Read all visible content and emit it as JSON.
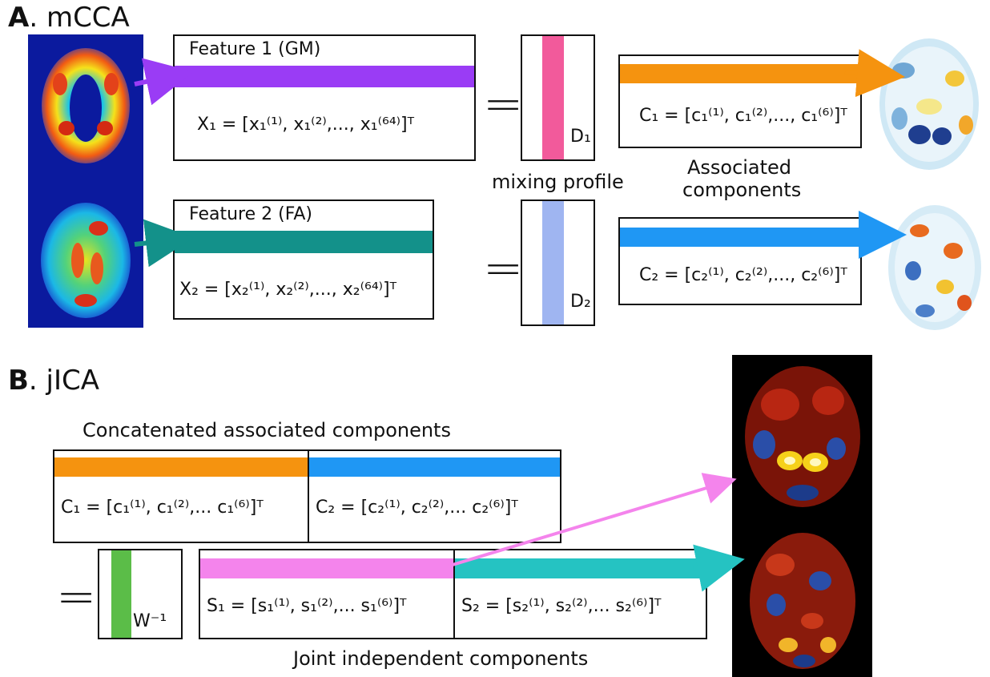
{
  "section_a": {
    "letter": "A",
    "title": ". mCCA"
  },
  "section_b": {
    "letter": "B",
    "title": ". jICA"
  },
  "feature1": {
    "label": "Feature 1 (GM)",
    "equation": "X₁ = [x₁⁽¹⁾, x₁⁽²⁾,..., x₁⁽⁶⁴⁾]ᵀ",
    "bar_color": "#9a3cf5"
  },
  "feature2": {
    "label": "Feature 2 (FA)",
    "equation": "X₂ = [x₂⁽¹⁾, x₂⁽²⁾,..., x₂⁽⁶⁴⁾]ᵀ",
    "bar_color": "#13918a"
  },
  "mixing1": {
    "label": "D₁",
    "bar_color": "#f25a9b"
  },
  "mixing2": {
    "label": "D₂",
    "bar_color": "#9fb5f1"
  },
  "mixing_caption": "mixing profile",
  "component1": {
    "equation": "C₁ = [c₁⁽¹⁾, c₁⁽²⁾,..., c₁⁽⁶⁾]ᵀ",
    "bar_color": "#f5930f"
  },
  "component2": {
    "equation": "C₂ = [c₂⁽¹⁾, c₂⁽²⁾,..., c₂⁽⁶⁾]ᵀ",
    "bar_color": "#1f97f4"
  },
  "associated_caption": {
    "line1": "Associated",
    "line2": "components"
  },
  "concat_caption": "Concatenated associated components",
  "concat_c1": "C₁ = [c₁⁽¹⁾, c₁⁽²⁾,... c₁⁽⁶⁾]ᵀ",
  "concat_c2": "C₂ = [c₂⁽¹⁾, c₂⁽²⁾,... c₂⁽⁶⁾]ᵀ",
  "unmixing": {
    "label": "W⁻¹",
    "bar_color": "#5bbd48"
  },
  "source1": {
    "equation": "S₁ = [s₁⁽¹⁾, s₁⁽²⁾,... s₁⁽⁶⁾]ᵀ",
    "bar_color": "#f484ec"
  },
  "source2": {
    "equation": "S₂ = [s₂⁽¹⁾, s₂⁽²⁾,... s₂⁽⁶⁾]ᵀ",
    "bar_color": "#25c3c2"
  },
  "joint_caption": "Joint independent components",
  "equals_sign": "="
}
